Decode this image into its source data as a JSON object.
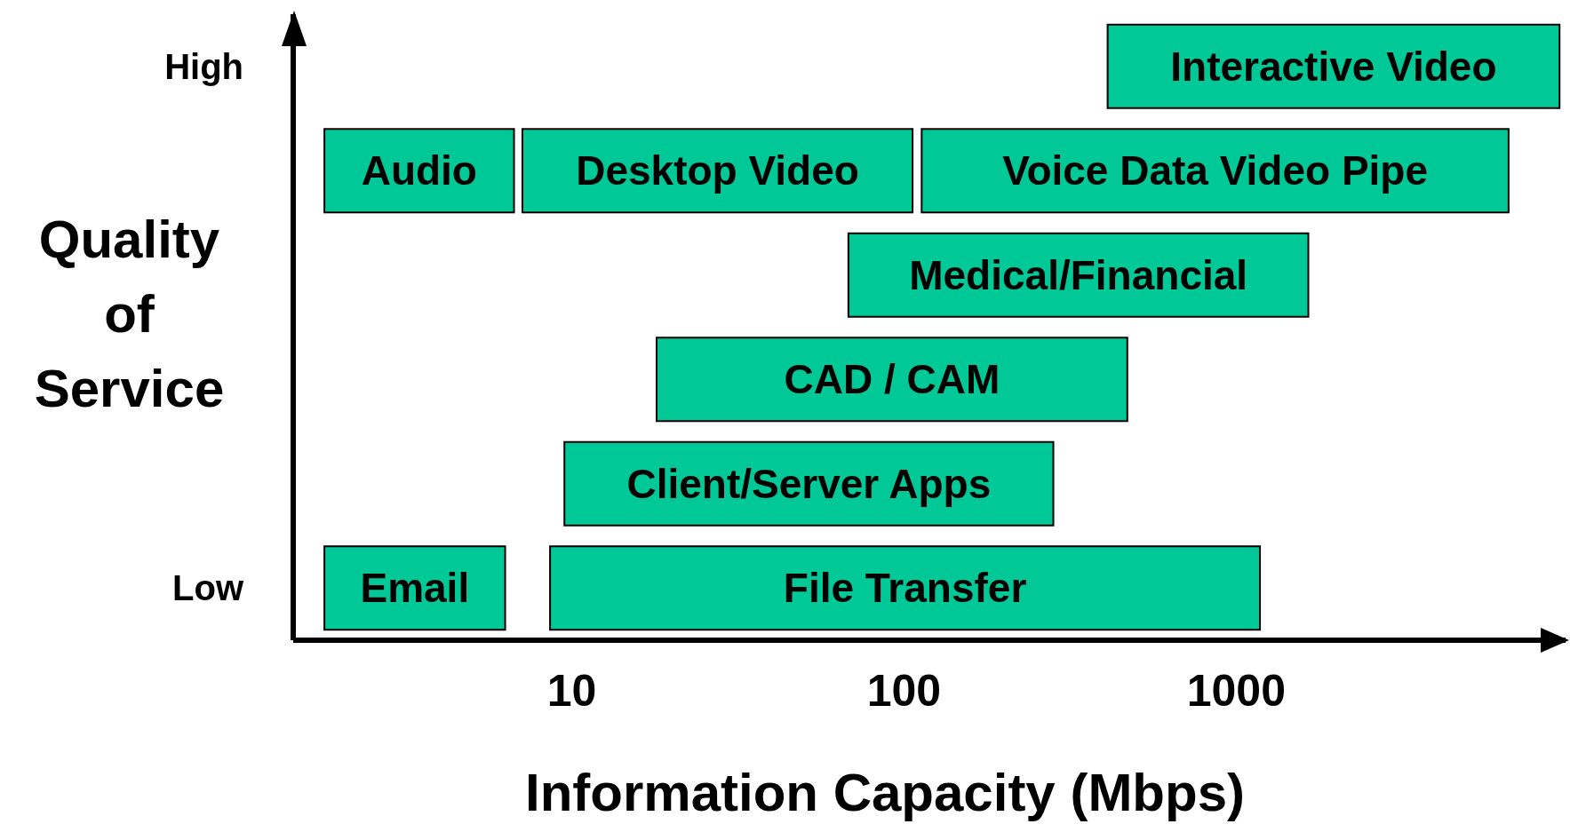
{
  "chart_data": {
    "type": "bar",
    "orientation": "horizontal",
    "xlabel": "Information Capacity (Mbps)",
    "ylabel": "Quality of Service",
    "log": "x",
    "xlim": [
      1.45,
      9800
    ],
    "xticks": [
      10,
      100,
      1000
    ],
    "grid": false,
    "categories": [
      "High",
      null,
      null,
      null,
      null,
      "Low"
    ],
    "series": [
      {
        "name": "Interactive Video",
        "color": "#00c896",
        "values": [
          8990,
          null,
          null,
          null,
          null,
          null
        ],
        "base": [
          410,
          null,
          null,
          null,
          null,
          null
        ]
      },
      {
        "name": "Audio",
        "color": "#00c896",
        "values": [
          null,
          4.9,
          null,
          null,
          null,
          null
        ],
        "base": [
          null,
          1.8,
          null,
          null,
          null,
          null
        ]
      },
      {
        "name": "Desktop Video",
        "color": "#00c896",
        "values": [
          null,
          99,
          null,
          null,
          null,
          null
        ],
        "base": [
          null,
          7.1,
          null,
          null,
          null,
          null
        ]
      },
      {
        "name": "Voice Data Video Pipe",
        "color": "#00c896",
        "values": [
          null,
          6490,
          null,
          null,
          null,
          null
        ],
        "base": [
          null,
          113,
          null,
          null,
          null,
          null
        ]
      },
      {
        "name": "Medical/Financial",
        "color": "#00c896",
        "values": [
          null,
          null,
          1580,
          null,
          null,
          null
        ],
        "base": [
          null,
          null,
          68,
          null,
          null,
          null
        ]
      },
      {
        "name": "CAD / CAM",
        "color": "#00c896",
        "values": [
          null,
          null,
          null,
          452,
          null,
          null
        ],
        "base": [
          null,
          null,
          null,
          18,
          null,
          null
        ]
      },
      {
        "name": "Client/Server Apps",
        "color": "#00c896",
        "values": [
          null,
          null,
          null,
          null,
          272,
          null
        ],
        "base": [
          null,
          null,
          null,
          null,
          9.5,
          null
        ]
      },
      {
        "name": "Email",
        "color": "#00c896",
        "values": [
          null,
          null,
          null,
          null,
          null,
          4.5
        ],
        "base": [
          null,
          null,
          null,
          null,
          null,
          1.8
        ]
      },
      {
        "name": "File Transfer",
        "color": "#00c896",
        "values": [
          null,
          null,
          null,
          null,
          null,
          1170
        ],
        "base": [
          null,
          null,
          null,
          null,
          null,
          8.6
        ]
      }
    ]
  }
}
